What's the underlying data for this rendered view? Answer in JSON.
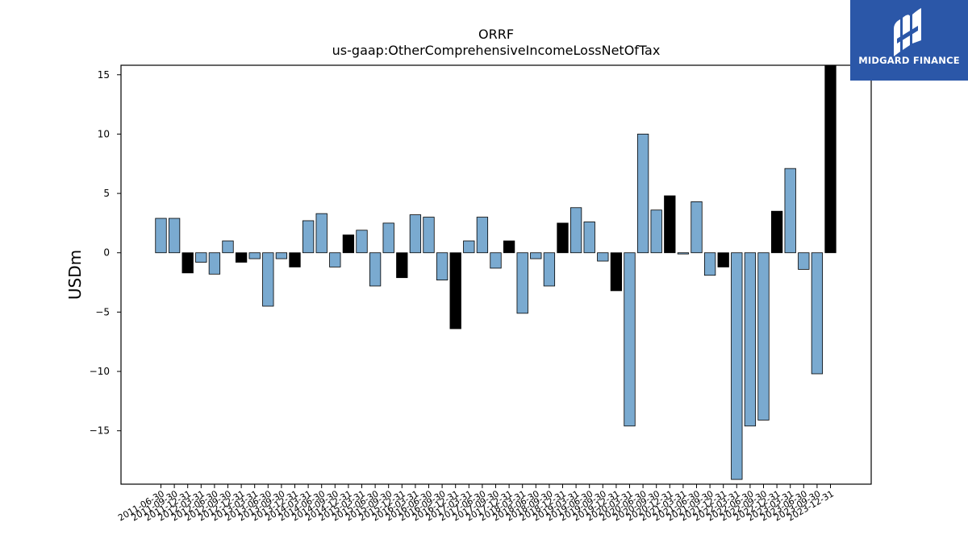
{
  "chart_data": {
    "type": "bar",
    "title": "ORRF",
    "subtitle": "us-gaap:OtherComprehensiveIncomeLossNetOfTax",
    "xlabel": "",
    "ylabel": "USDm",
    "ylim": [
      -19.5,
      15.8
    ],
    "yticks": [
      15,
      10,
      5,
      0,
      -5,
      -10,
      -15
    ],
    "grid": false,
    "colors": {
      "quarter": "#7aaad0",
      "annual": "#000000"
    },
    "categories": [
      "2011-06-30",
      "2011-09-30",
      "2011-12-31",
      "2012-03-31",
      "2012-06-30",
      "2012-09-30",
      "2012-12-31",
      "2013-03-31",
      "2013-06-30",
      "2013-09-30",
      "2013-12-31",
      "2014-03-31",
      "2014-06-30",
      "2014-09-30",
      "2014-12-31",
      "2015-03-31",
      "2015-06-30",
      "2015-09-30",
      "2015-12-31",
      "2016-03-31",
      "2016-06-30",
      "2016-09-30",
      "2016-12-31",
      "2017-03-31",
      "2017-06-30",
      "2017-09-30",
      "2017-12-31",
      "2018-03-31",
      "2018-06-30",
      "2018-09-30",
      "2018-12-31",
      "2019-03-31",
      "2019-06-30",
      "2019-09-30",
      "2019-12-31",
      "2020-03-31",
      "2020-06-30",
      "2020-09-30",
      "2020-12-31",
      "2021-03-31",
      "2021-06-30",
      "2021-09-30",
      "2021-12-31",
      "2022-03-31",
      "2022-06-30",
      "2022-09-30",
      "2022-12-31",
      "2023-03-31",
      "2023-06-30",
      "2023-09-30",
      "2023-12-31"
    ],
    "values": [
      2.9,
      2.9,
      -1.7,
      -0.8,
      -1.8,
      1.0,
      -0.8,
      -0.5,
      -4.5,
      -0.5,
      -1.2,
      2.7,
      3.3,
      -1.2,
      1.5,
      1.9,
      -2.8,
      2.5,
      -2.1,
      3.2,
      3.0,
      -2.3,
      -6.4,
      1.0,
      3.0,
      -1.3,
      1.0,
      -5.1,
      -0.5,
      -2.8,
      2.5,
      3.8,
      2.6,
      -0.7,
      -3.2,
      -14.6,
      10.0,
      3.6,
      4.8,
      -0.1,
      4.3,
      -1.9,
      -1.2,
      -19.1,
      -14.6,
      -14.1,
      3.5,
      7.1,
      -1.4,
      -10.2,
      15.8
    ],
    "bar_kind": [
      "quarter",
      "quarter",
      "annual",
      "quarter",
      "quarter",
      "quarter",
      "annual",
      "quarter",
      "quarter",
      "quarter",
      "annual",
      "quarter",
      "quarter",
      "quarter",
      "annual",
      "quarter",
      "quarter",
      "quarter",
      "annual",
      "quarter",
      "quarter",
      "quarter",
      "annual",
      "quarter",
      "quarter",
      "quarter",
      "annual",
      "quarter",
      "quarter",
      "quarter",
      "annual",
      "quarter",
      "quarter",
      "quarter",
      "annual",
      "quarter",
      "quarter",
      "quarter",
      "annual",
      "quarter",
      "quarter",
      "quarter",
      "annual",
      "quarter",
      "quarter",
      "quarter",
      "annual",
      "quarter",
      "quarter",
      "quarter",
      "annual"
    ]
  },
  "brand": {
    "name": "MIDGARD FINANCE",
    "bg_color": "#2b57a8",
    "icon": "midgard-logo-icon"
  }
}
